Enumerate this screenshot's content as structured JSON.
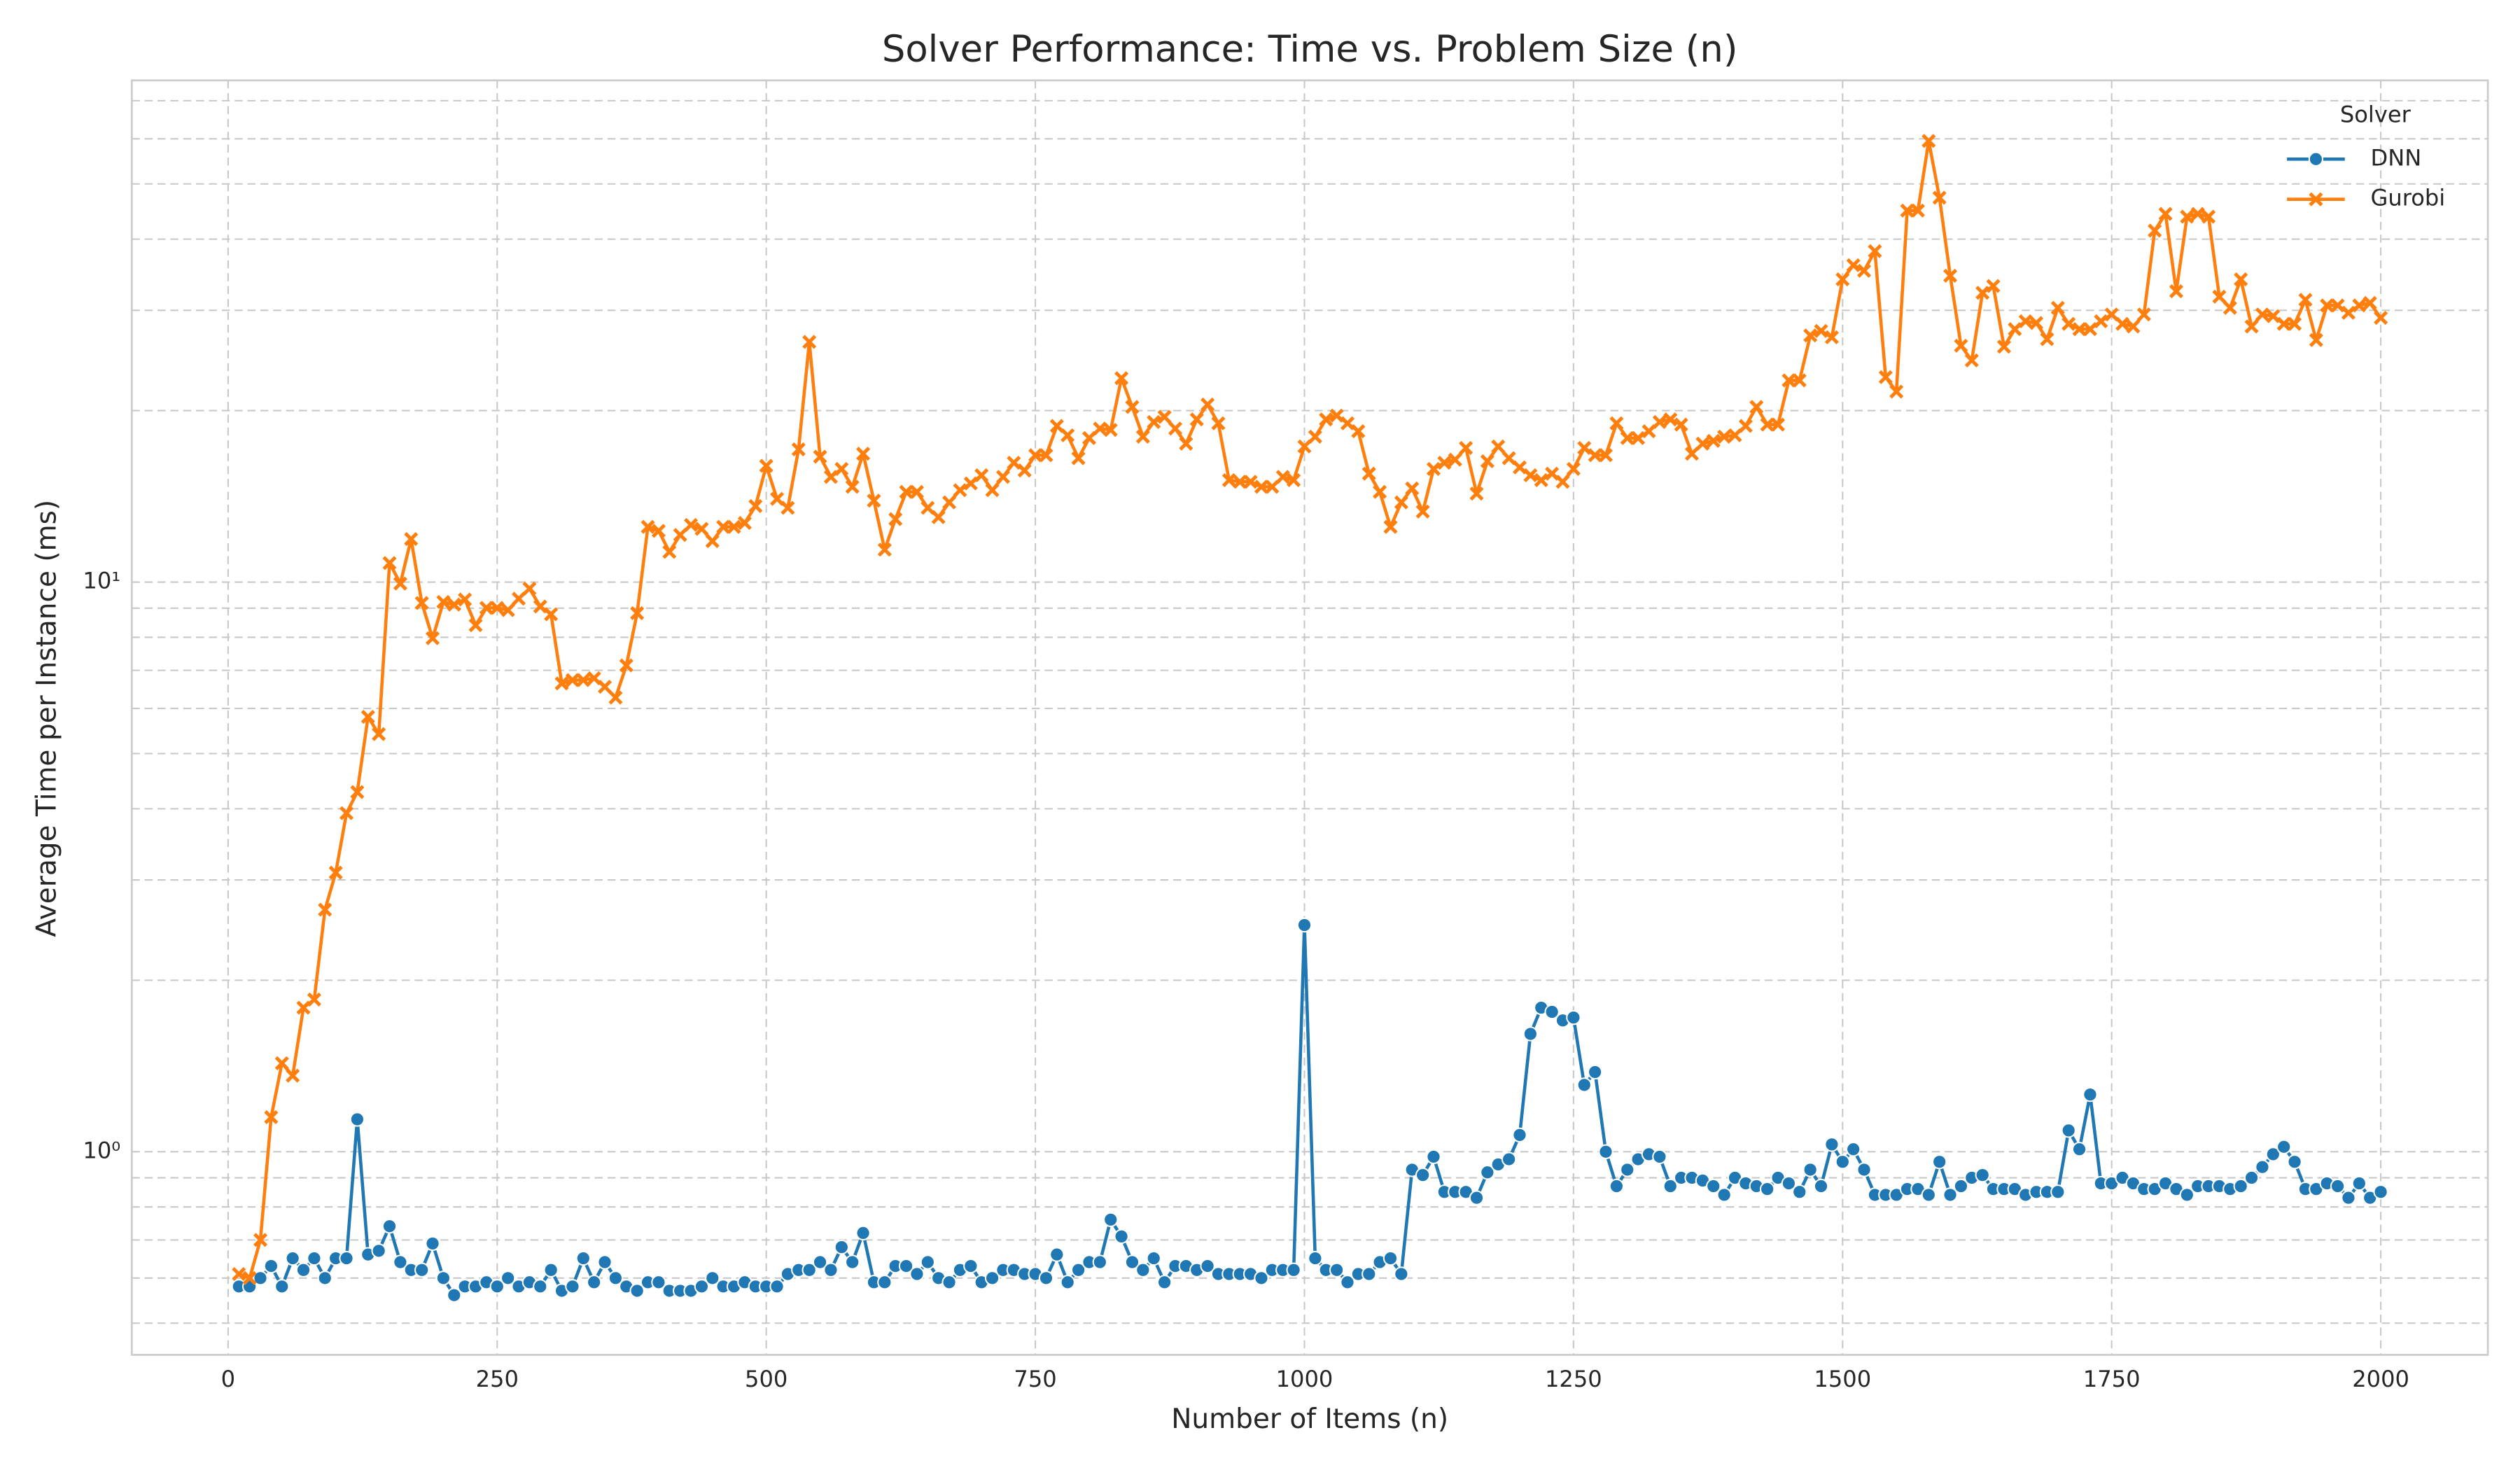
{
  "chart_data": {
    "type": "line",
    "title": "Solver Performance: Time vs. Problem Size (n)",
    "xlabel": "Number of Items (n)",
    "ylabel": "Average Time per Instance (ms)",
    "x": [
      10,
      20,
      30,
      40,
      50,
      60,
      70,
      80,
      90,
      100,
      110,
      120,
      130,
      140,
      150,
      160,
      170,
      180,
      190,
      200,
      210,
      220,
      230,
      240,
      250,
      260,
      270,
      280,
      290,
      300,
      310,
      320,
      330,
      340,
      350,
      360,
      370,
      380,
      390,
      400,
      410,
      420,
      430,
      440,
      450,
      460,
      470,
      480,
      490,
      500,
      510,
      520,
      530,
      540,
      550,
      560,
      570,
      580,
      590,
      600,
      610,
      620,
      630,
      640,
      650,
      660,
      670,
      680,
      690,
      700,
      710,
      720,
      730,
      740,
      750,
      760,
      770,
      780,
      790,
      800,
      810,
      820,
      830,
      840,
      850,
      860,
      870,
      880,
      890,
      900,
      910,
      920,
      930,
      940,
      950,
      960,
      970,
      980,
      990,
      1000,
      1010,
      1020,
      1030,
      1040,
      1050,
      1060,
      1070,
      1080,
      1090,
      1100,
      1110,
      1120,
      1130,
      1140,
      1150,
      1160,
      1170,
      1180,
      1190,
      1200,
      1210,
      1220,
      1230,
      1240,
      1250,
      1260,
      1270,
      1280,
      1290,
      1300,
      1310,
      1320,
      1330,
      1340,
      1350,
      1360,
      1370,
      1380,
      1390,
      1400,
      1410,
      1420,
      1430,
      1440,
      1450,
      1460,
      1470,
      1480,
      1490,
      1500,
      1510,
      1520,
      1530,
      1540,
      1550,
      1560,
      1570,
      1580,
      1590,
      1600,
      1610,
      1620,
      1630,
      1640,
      1650,
      1660,
      1670,
      1680,
      1690,
      1700,
      1710,
      1720,
      1730,
      1740,
      1750,
      1760,
      1770,
      1780,
      1790,
      1800,
      1810,
      1820,
      1830,
      1840,
      1850,
      1860,
      1870,
      1880,
      1890,
      1900,
      1910,
      1920,
      1930,
      1940,
      1950,
      1960,
      1970,
      1980,
      1990,
      2000
    ],
    "series": [
      {
        "name": "DNN",
        "color": "#1f77b4",
        "marker": "o",
        "values": [
          0.58,
          0.58,
          0.6,
          0.63,
          0.58,
          0.65,
          0.62,
          0.65,
          0.6,
          0.65,
          0.65,
          1.14,
          0.66,
          0.67,
          0.74,
          0.64,
          0.62,
          0.62,
          0.69,
          0.6,
          0.56,
          0.58,
          0.58,
          0.59,
          0.58,
          0.6,
          0.58,
          0.59,
          0.58,
          0.62,
          0.57,
          0.58,
          0.65,
          0.59,
          0.64,
          0.6,
          0.58,
          0.57,
          0.59,
          0.59,
          0.57,
          0.57,
          0.57,
          0.58,
          0.6,
          0.58,
          0.58,
          0.59,
          0.58,
          0.58,
          0.58,
          0.61,
          0.62,
          0.62,
          0.64,
          0.62,
          0.68,
          0.64,
          0.72,
          0.59,
          0.59,
          0.63,
          0.63,
          0.61,
          0.64,
          0.6,
          0.59,
          0.62,
          0.63,
          0.59,
          0.6,
          0.62,
          0.62,
          0.61,
          0.61,
          0.6,
          0.66,
          0.59,
          0.62,
          0.64,
          0.64,
          0.76,
          0.71,
          0.64,
          0.62,
          0.65,
          0.59,
          0.63,
          0.63,
          0.62,
          0.63,
          0.61,
          0.61,
          0.61,
          0.61,
          0.6,
          0.62,
          0.62,
          0.62,
          2.5,
          0.65,
          0.62,
          0.62,
          0.59,
          0.61,
          0.61,
          0.64,
          0.65,
          0.61,
          0.93,
          0.91,
          0.98,
          0.85,
          0.85,
          0.85,
          0.83,
          0.92,
          0.95,
          0.97,
          1.07,
          1.61,
          1.79,
          1.76,
          1.7,
          1.72,
          1.31,
          1.38,
          1.0,
          0.87,
          0.93,
          0.97,
          0.99,
          0.98,
          0.87,
          0.9,
          0.9,
          0.89,
          0.87,
          0.84,
          0.9,
          0.88,
          0.87,
          0.86,
          0.9,
          0.88,
          0.85,
          0.93,
          0.87,
          1.03,
          0.96,
          1.01,
          0.93,
          0.84,
          0.84,
          0.84,
          0.86,
          0.86,
          0.84,
          0.96,
          0.84,
          0.87,
          0.9,
          0.91,
          0.86,
          0.86,
          0.86,
          0.84,
          0.85,
          0.85,
          0.85,
          1.09,
          1.01,
          1.26,
          0.88,
          0.88,
          0.9,
          0.88,
          0.86,
          0.86,
          0.88,
          0.86,
          0.84,
          0.87,
          0.87,
          0.87,
          0.86,
          0.87,
          0.9,
          0.94,
          0.99,
          1.02,
          0.96,
          0.86,
          0.86,
          0.88,
          0.87,
          0.83,
          0.88,
          0.83,
          0.85
        ]
      },
      {
        "name": "Gurobi",
        "color": "#ff7f0e",
        "marker": "x",
        "values": [
          0.61,
          0.6,
          0.7,
          1.15,
          1.43,
          1.36,
          1.79,
          1.85,
          2.66,
          3.09,
          3.93,
          4.28,
          5.8,
          5.41,
          10.8,
          9.94,
          11.9,
          9.19,
          7.97,
          9.23,
          9.13,
          9.32,
          8.4,
          9.01,
          9.01,
          8.93,
          9.35,
          9.74,
          9.06,
          8.78,
          6.64,
          6.73,
          6.73,
          6.78,
          6.55,
          6.27,
          7.14,
          8.82,
          12.5,
          12.3,
          11.3,
          12.1,
          12.6,
          12.4,
          11.8,
          12.5,
          12.5,
          12.7,
          13.6,
          16.0,
          14.0,
          13.5,
          17.1,
          26.4,
          16.6,
          15.3,
          15.8,
          14.7,
          16.8,
          13.9,
          11.4,
          12.9,
          14.4,
          14.4,
          13.5,
          13.0,
          13.8,
          14.5,
          14.9,
          15.4,
          14.5,
          15.3,
          16.2,
          15.7,
          16.7,
          16.7,
          18.8,
          18.1,
          16.5,
          17.9,
          18.6,
          18.5,
          22.8,
          20.3,
          18.0,
          19.1,
          19.5,
          18.6,
          17.5,
          19.3,
          20.5,
          19.0,
          15.1,
          15.0,
          15.0,
          14.7,
          14.7,
          15.3,
          15.1,
          17.3,
          18.0,
          19.3,
          19.6,
          19.0,
          18.4,
          15.5,
          14.4,
          12.5,
          13.8,
          14.6,
          13.3,
          15.8,
          16.2,
          16.4,
          17.2,
          14.3,
          16.3,
          17.3,
          16.5,
          15.9,
          15.4,
          15.1,
          15.5,
          15.0,
          15.8,
          17.2,
          16.7,
          16.7,
          19.0,
          17.9,
          17.9,
          18.4,
          19.1,
          19.3,
          18.9,
          16.8,
          17.5,
          17.7,
          18.0,
          18.1,
          18.8,
          20.3,
          18.9,
          18.9,
          22.6,
          22.6,
          27.1,
          27.6,
          26.9,
          34.0,
          36.0,
          35.2,
          38.1,
          22.9,
          21.6,
          44.9,
          44.9,
          59.5,
          47.3,
          34.5,
          26.0,
          24.5,
          32.2,
          33.1,
          25.9,
          27.8,
          28.7,
          28.5,
          26.7,
          30.3,
          28.4,
          27.8,
          27.8,
          28.7,
          29.5,
          28.4,
          28.1,
          29.5,
          41.4,
          44.3,
          32.4,
          43.8,
          44.3,
          43.8,
          31.7,
          30.3,
          34.0,
          28.1,
          29.5,
          29.3,
          28.4,
          28.4,
          31.3,
          26.6,
          30.6,
          30.6,
          29.7,
          30.6,
          30.9,
          29.1
        ]
      }
    ],
    "xlim": [
      -89.5,
      2099.5
    ],
    "xticks": [
      0,
      250,
      500,
      750,
      1000,
      1250,
      1500,
      1750,
      2000
    ],
    "ylim": [
      0.44,
      76
    ],
    "yscale": "log",
    "yticks": [
      {
        "value": 1,
        "label": "10⁰"
      },
      {
        "value": 10,
        "label": "10¹"
      }
    ],
    "yminorticks": [
      0.5,
      0.6,
      0.7,
      0.8,
      0.9,
      2,
      3,
      4,
      5,
      6,
      7,
      8,
      9,
      20,
      30,
      40,
      50,
      60,
      70
    ],
    "grid": true,
    "legend_title": "Solver",
    "legend_position": "upper right"
  }
}
